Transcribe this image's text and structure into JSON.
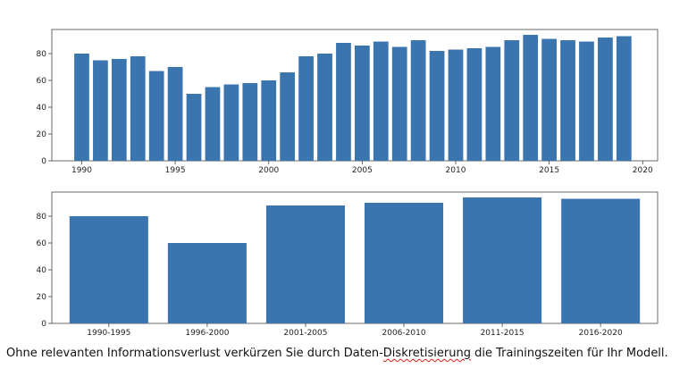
{
  "chart_data": [
    {
      "type": "bar",
      "title": "",
      "xlabel": "",
      "ylabel": "",
      "x": [
        1990,
        1991,
        1992,
        1993,
        1994,
        1995,
        1996,
        1997,
        1998,
        1999,
        2000,
        2001,
        2002,
        2003,
        2004,
        2005,
        2006,
        2007,
        2008,
        2009,
        2010,
        2011,
        2012,
        2013,
        2014,
        2015,
        2016,
        2017,
        2018,
        2019
      ],
      "values": [
        80,
        75,
        76,
        78,
        67,
        70,
        50,
        55,
        57,
        58,
        60,
        66,
        78,
        80,
        88,
        86,
        89,
        85,
        90,
        82,
        83,
        84,
        85,
        90,
        94,
        91,
        90,
        89,
        92,
        93
      ],
      "xticks": [
        1990,
        1995,
        2000,
        2005,
        2010,
        2015,
        2020
      ],
      "yticks": [
        0,
        20,
        40,
        60,
        80
      ],
      "xlim": [
        1988.4,
        2020.8
      ],
      "ylim": [
        0,
        98
      ],
      "grid": false,
      "bar_color": "#3b75af"
    },
    {
      "type": "bar",
      "title": "",
      "xlabel": "",
      "ylabel": "",
      "categories": [
        "1990-1995",
        "1996-2000",
        "2001-2005",
        "2006-2010",
        "2011-2015",
        "2016-2020"
      ],
      "values": [
        80,
        60,
        88,
        90,
        94,
        93
      ],
      "yticks": [
        0,
        20,
        40,
        60,
        80
      ],
      "ylim": [
        0,
        98
      ],
      "grid": false,
      "bar_color": "#3b75af"
    }
  ],
  "caption": {
    "before": "Ohne relevanten Informationsverlust verkürzen Sie durch Daten-",
    "marked": "Diskretisierung",
    "after": " die Trainingszeiten für Ihr Modell."
  },
  "colors": {
    "axis": "#444444",
    "spellcheck": "#e02020"
  }
}
